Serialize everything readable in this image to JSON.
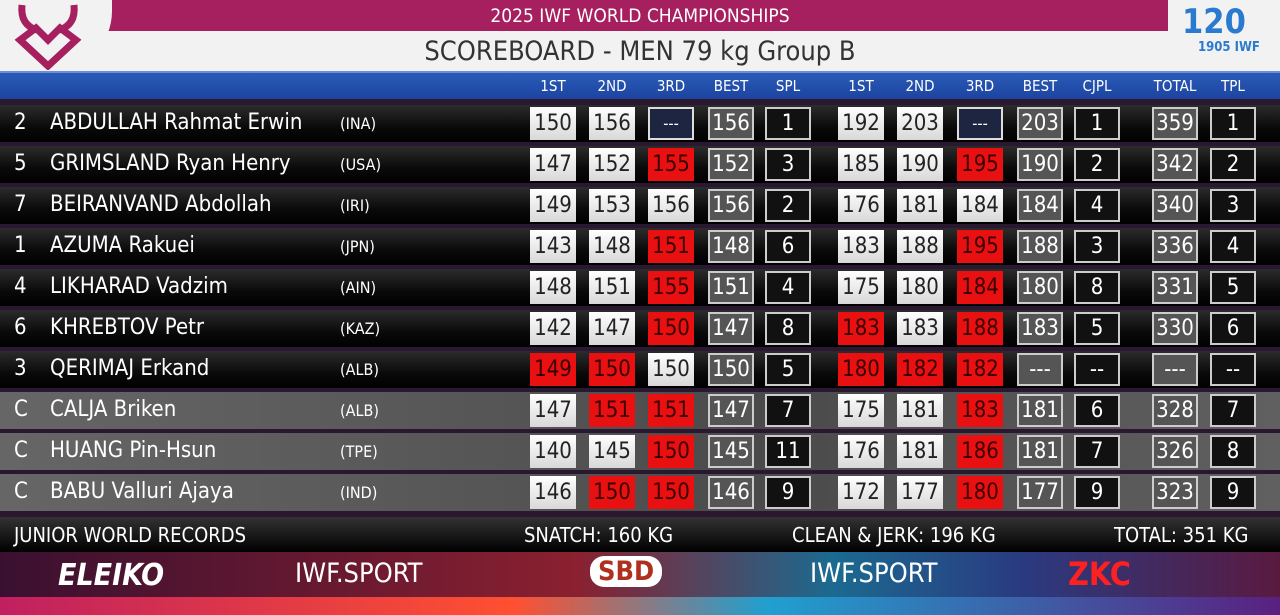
{
  "header": {
    "event": "2025 IWF WORLD CHAMPIONSHIPS",
    "title": "SCOREBOARD - MEN 79 kg Group B",
    "right_logo": "120 Founded 1905 IWF"
  },
  "columns": [
    "1ST",
    "2ND",
    "3RD",
    "BEST",
    "SPL",
    "1ST",
    "2ND",
    "3RD",
    "BEST",
    "CJPL",
    "TOTAL",
    "TPL"
  ],
  "colors": {
    "good": "#ffffff",
    "fail": "#e81010",
    "accent": "#a61f5e",
    "header_blue": "#2a5bb8"
  },
  "athletes": [
    {
      "lot": "2",
      "name": "ABDULLAH Rahmat Erwin",
      "nation": "(INA)",
      "style": "dark",
      "snatch": [
        [
          "150",
          "good"
        ],
        [
          "156",
          "good"
        ],
        [
          "---",
          "pending"
        ]
      ],
      "snatch_best": "156",
      "spl": "1",
      "cj": [
        [
          "192",
          "good"
        ],
        [
          "203",
          "good"
        ],
        [
          "---",
          "pending"
        ]
      ],
      "cj_best": "203",
      "cjpl": "1",
      "total": "359",
      "tpl": "1"
    },
    {
      "lot": "5",
      "name": "GRIMSLAND Ryan Henry",
      "nation": "(USA)",
      "style": "dark",
      "snatch": [
        [
          "147",
          "good"
        ],
        [
          "152",
          "good"
        ],
        [
          "155",
          "fail"
        ]
      ],
      "snatch_best": "152",
      "spl": "3",
      "cj": [
        [
          "185",
          "good"
        ],
        [
          "190",
          "good"
        ],
        [
          "195",
          "fail"
        ]
      ],
      "cj_best": "190",
      "cjpl": "2",
      "total": "342",
      "tpl": "2"
    },
    {
      "lot": "7",
      "name": "BEIRANVAND Abdollah",
      "nation": "(IRI)",
      "style": "dark",
      "snatch": [
        [
          "149",
          "good"
        ],
        [
          "153",
          "good"
        ],
        [
          "156",
          "good"
        ]
      ],
      "snatch_best": "156",
      "spl": "2",
      "cj": [
        [
          "176",
          "good"
        ],
        [
          "181",
          "good"
        ],
        [
          "184",
          "good"
        ]
      ],
      "cj_best": "184",
      "cjpl": "4",
      "total": "340",
      "tpl": "3"
    },
    {
      "lot": "1",
      "name": "AZUMA Rakuei",
      "nation": "(JPN)",
      "style": "dark",
      "snatch": [
        [
          "143",
          "good"
        ],
        [
          "148",
          "good"
        ],
        [
          "151",
          "fail"
        ]
      ],
      "snatch_best": "148",
      "spl": "6",
      "cj": [
        [
          "183",
          "good"
        ],
        [
          "188",
          "good"
        ],
        [
          "195",
          "fail"
        ]
      ],
      "cj_best": "188",
      "cjpl": "3",
      "total": "336",
      "tpl": "4"
    },
    {
      "lot": "4",
      "name": "LIKHARAD Vadzim",
      "nation": "(AIN)",
      "style": "dark",
      "snatch": [
        [
          "148",
          "good"
        ],
        [
          "151",
          "good"
        ],
        [
          "155",
          "fail"
        ]
      ],
      "snatch_best": "151",
      "spl": "4",
      "cj": [
        [
          "175",
          "good"
        ],
        [
          "180",
          "good"
        ],
        [
          "184",
          "fail"
        ]
      ],
      "cj_best": "180",
      "cjpl": "8",
      "total": "331",
      "tpl": "5"
    },
    {
      "lot": "6",
      "name": "KHREBTOV Petr",
      "nation": "(KAZ)",
      "style": "dark",
      "snatch": [
        [
          "142",
          "good"
        ],
        [
          "147",
          "good"
        ],
        [
          "150",
          "fail"
        ]
      ],
      "snatch_best": "147",
      "spl": "8",
      "cj": [
        [
          "183",
          "fail"
        ],
        [
          "183",
          "good"
        ],
        [
          "188",
          "fail"
        ]
      ],
      "cj_best": "183",
      "cjpl": "5",
      "total": "330",
      "tpl": "6"
    },
    {
      "lot": "3",
      "name": "QERIMAJ Erkand",
      "nation": "(ALB)",
      "style": "dark",
      "snatch": [
        [
          "149",
          "fail"
        ],
        [
          "150",
          "fail"
        ],
        [
          "150",
          "good"
        ]
      ],
      "snatch_best": "150",
      "spl": "5",
      "cj": [
        [
          "180",
          "fail"
        ],
        [
          "182",
          "fail"
        ],
        [
          "182",
          "fail"
        ]
      ],
      "cj_best": "---",
      "cjpl": "--",
      "total": "---",
      "tpl": "--"
    },
    {
      "lot": "C",
      "name": "CALJA Briken",
      "nation": "(ALB)",
      "style": "grey",
      "snatch": [
        [
          "147",
          "good"
        ],
        [
          "151",
          "fail"
        ],
        [
          "151",
          "fail"
        ]
      ],
      "snatch_best": "147",
      "spl": "7",
      "cj": [
        [
          "175",
          "good"
        ],
        [
          "181",
          "good"
        ],
        [
          "183",
          "fail"
        ]
      ],
      "cj_best": "181",
      "cjpl": "6",
      "total": "328",
      "tpl": "7"
    },
    {
      "lot": "C",
      "name": "HUANG Pin-Hsun",
      "nation": "(TPE)",
      "style": "grey",
      "snatch": [
        [
          "140",
          "good"
        ],
        [
          "145",
          "good"
        ],
        [
          "150",
          "fail"
        ]
      ],
      "snatch_best": "145",
      "spl": "11",
      "cj": [
        [
          "176",
          "good"
        ],
        [
          "181",
          "good"
        ],
        [
          "186",
          "fail"
        ]
      ],
      "cj_best": "181",
      "cjpl": "7",
      "total": "326",
      "tpl": "8"
    },
    {
      "lot": "C",
      "name": "BABU Valluri Ajaya",
      "nation": "(IND)",
      "style": "grey",
      "snatch": [
        [
          "146",
          "good"
        ],
        [
          "150",
          "fail"
        ],
        [
          "150",
          "fail"
        ]
      ],
      "snatch_best": "146",
      "spl": "9",
      "cj": [
        [
          "172",
          "good"
        ],
        [
          "177",
          "good"
        ],
        [
          "180",
          "fail"
        ]
      ],
      "cj_best": "177",
      "cjpl": "9",
      "total": "323",
      "tpl": "9"
    }
  ],
  "records": {
    "label": "JUNIOR WORLD RECORDS",
    "snatch": "SNATCH: 160 KG",
    "cj": "CLEAN & JERK: 196 KG",
    "total": "TOTAL: 351 KG"
  },
  "sponsors": {
    "s1": "ELEIKO",
    "s2": "IWF.SPORT",
    "s3": "SBD",
    "s4": "IWF.SPORT",
    "s5": "ZKC"
  }
}
